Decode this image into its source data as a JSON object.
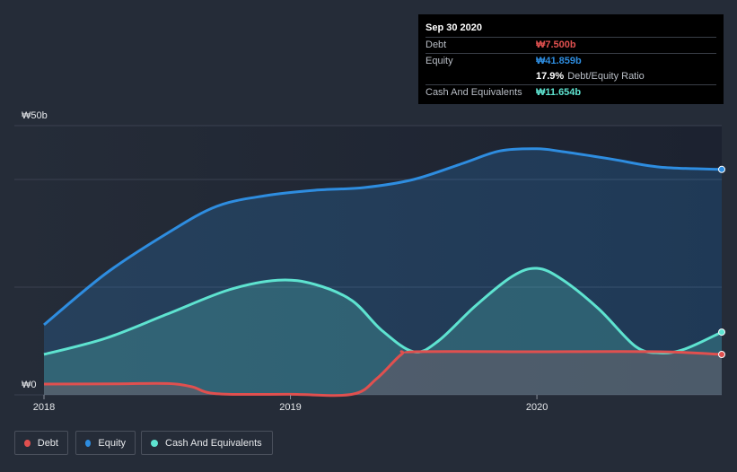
{
  "chart_data": {
    "type": "area",
    "title": "",
    "currency_labels": {
      "y_top": "₩50b",
      "y_bottom": "₩0"
    },
    "ylim": [
      0,
      50
    ],
    "xlim": [
      2018,
      2020.75
    ],
    "x_ticks": [
      {
        "value": 2018,
        "label": "2018"
      },
      {
        "value": 2019,
        "label": "2019"
      },
      {
        "value": 2020,
        "label": "2020"
      }
    ],
    "series": [
      {
        "name": "Equity",
        "color": "#2e8de0",
        "points": [
          [
            2018.0,
            13.0
          ],
          [
            2018.25,
            22.5
          ],
          [
            2018.5,
            30.0
          ],
          [
            2018.7,
            35.0
          ],
          [
            2018.9,
            37.0
          ],
          [
            2019.1,
            38.0
          ],
          [
            2019.3,
            38.5
          ],
          [
            2019.5,
            40.0
          ],
          [
            2019.7,
            43.0
          ],
          [
            2019.85,
            45.3
          ],
          [
            2020.0,
            45.7
          ],
          [
            2020.1,
            45.2
          ],
          [
            2020.3,
            43.8
          ],
          [
            2020.5,
            42.3
          ],
          [
            2020.75,
            41.859
          ]
        ]
      },
      {
        "name": "Cash And Equivalents",
        "color": "#5ee3d0",
        "points": [
          [
            2018.0,
            7.5
          ],
          [
            2018.25,
            10.5
          ],
          [
            2018.5,
            15.0
          ],
          [
            2018.75,
            19.5
          ],
          [
            2018.95,
            21.3
          ],
          [
            2019.1,
            20.5
          ],
          [
            2019.25,
            17.5
          ],
          [
            2019.37,
            12.0
          ],
          [
            2019.5,
            8.0
          ],
          [
            2019.6,
            10.0
          ],
          [
            2019.75,
            16.5
          ],
          [
            2019.9,
            22.0
          ],
          [
            2020.0,
            23.5
          ],
          [
            2020.1,
            21.5
          ],
          [
            2020.25,
            16.0
          ],
          [
            2020.4,
            9.0
          ],
          [
            2020.5,
            7.8
          ],
          [
            2020.6,
            8.5
          ],
          [
            2020.75,
            11.654
          ]
        ]
      },
      {
        "name": "Debt",
        "color": "#e0504f",
        "points": [
          [
            2018.0,
            2.0
          ],
          [
            2018.3,
            2.05
          ],
          [
            2018.5,
            2.1
          ],
          [
            2018.6,
            1.5
          ],
          [
            2018.7,
            0.2
          ],
          [
            2019.0,
            0.1
          ],
          [
            2019.25,
            0.1
          ],
          [
            2019.35,
            3.0
          ],
          [
            2019.45,
            7.5
          ],
          [
            2019.5,
            8.0
          ],
          [
            2020.0,
            8.0
          ],
          [
            2020.5,
            8.0
          ],
          [
            2020.75,
            7.5
          ]
        ]
      }
    ],
    "tooltip": {
      "date": "Sep 30 2020",
      "rows": [
        {
          "label": "Debt",
          "value": "₩7.500b",
          "color": "#e0504f"
        },
        {
          "label": "Equity",
          "value": "₩41.859b",
          "color": "#2e8de0"
        },
        {
          "label": "",
          "value": "17.9%",
          "suffix": "Debt/Equity Ratio",
          "color": "#ffffff"
        },
        {
          "label": "Cash And Equivalents",
          "value": "₩11.654b",
          "color": "#5ee3d0"
        }
      ]
    },
    "legend": [
      {
        "name": "Debt",
        "color": "#e0504f"
      },
      {
        "name": "Equity",
        "color": "#2e8de0"
      },
      {
        "name": "Cash And Equivalents",
        "color": "#5ee3d0"
      }
    ]
  }
}
